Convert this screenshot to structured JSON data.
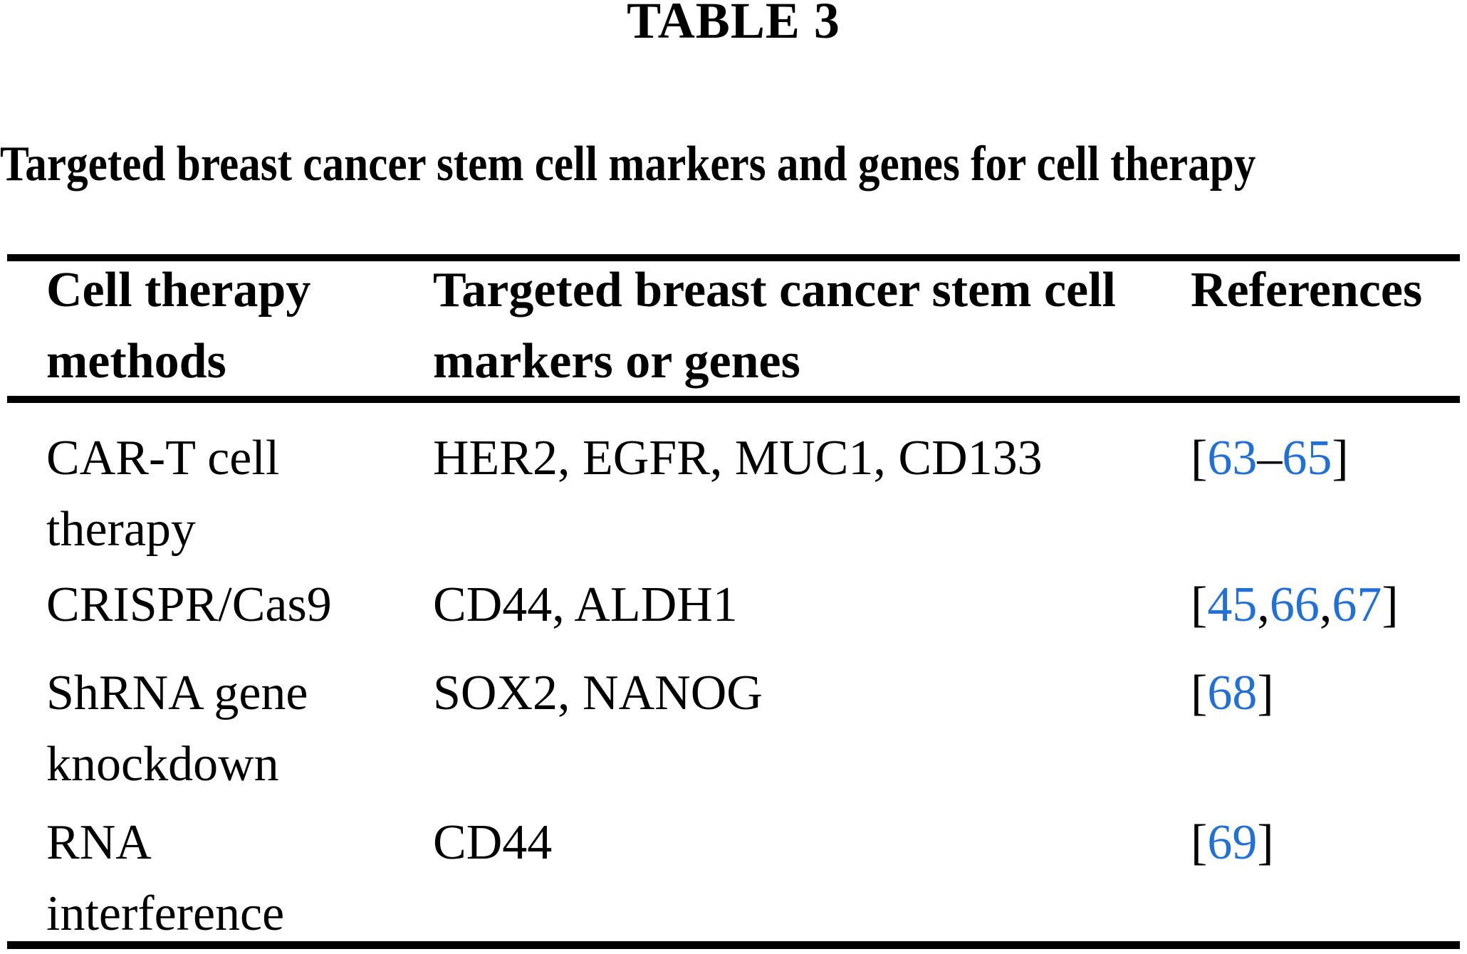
{
  "table_label": "TABLE 3",
  "caption": "Targeted breast cancer stem cell markers and genes for cell therapy",
  "colors": {
    "link_blue": "#2170d9",
    "text": "#000000",
    "background": "#ffffff"
  },
  "table": {
    "columns": [
      {
        "label": "Cell therapy\nmethods"
      },
      {
        "label": "Targeted breast cancer stem cell\nmarkers or genes"
      },
      {
        "label": "References"
      }
    ],
    "rows": [
      {
        "method": "CAR-T cell\ntherapy",
        "markers": "HER2, EGFR, MUC1, CD133",
        "references": "[63–65]"
      },
      {
        "method": "CRISPR/Cas9",
        "markers": "CD44, ALDH1",
        "references": "[45,66,67]"
      },
      {
        "method": "ShRNA gene\nknockdown",
        "markers": "SOX2, NANOG",
        "references": "[68]"
      },
      {
        "method": "RNA\ninterference",
        "markers": "CD44",
        "references": "[69]"
      }
    ]
  }
}
